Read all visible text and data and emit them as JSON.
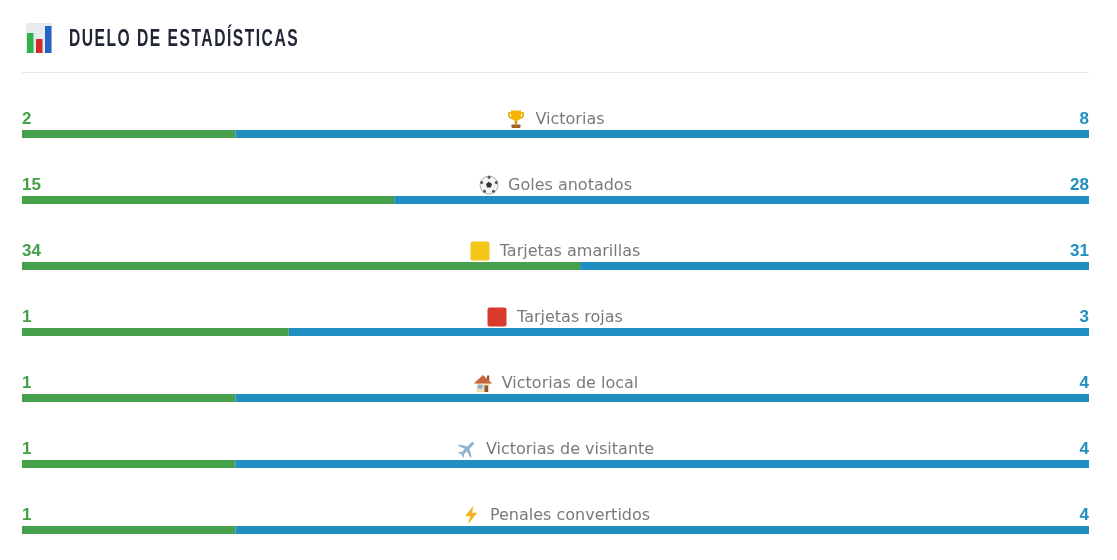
{
  "chart_data": [
    {
      "type": "bar",
      "title": "DUELO DE ESTADÍSTICAS",
      "orientation": "horizontal",
      "stacked": true,
      "tick_labels": "y",
      "data_labels": true,
      "categories": [
        "Victorias"
      ],
      "series": [
        {
          "color": "#45a049",
          "values": [
            2
          ]
        },
        {
          "color": "#1f8fc1",
          "values": [
            8
          ]
        }
      ]
    },
    {
      "type": "bar",
      "orientation": "horizontal",
      "stacked": true,
      "tick_labels": "y",
      "data_labels": true,
      "categories": [
        "Goles anotados"
      ],
      "series": [
        {
          "color": "#45a049",
          "values": [
            15
          ]
        },
        {
          "color": "#1f8fc1",
          "values": [
            28
          ]
        }
      ]
    },
    {
      "type": "bar",
      "orientation": "horizontal",
      "stacked": true,
      "tick_labels": "y",
      "data_labels": true,
      "categories": [
        "Tarjetas amarillas"
      ],
      "series": [
        {
          "color": "#45a049",
          "values": [
            34
          ]
        },
        {
          "color": "#1f8fc1",
          "values": [
            31
          ]
        }
      ]
    },
    {
      "type": "bar",
      "orientation": "horizontal",
      "stacked": true,
      "tick_labels": "y",
      "data_labels": true,
      "categories": [
        "Tarjetas rojas"
      ],
      "series": [
        {
          "color": "#45a049",
          "values": [
            1
          ]
        },
        {
          "color": "#1f8fc1",
          "values": [
            3
          ]
        }
      ]
    },
    {
      "type": "bar",
      "orientation": "horizontal",
      "stacked": true,
      "tick_labels": "y",
      "data_labels": true,
      "categories": [
        "Victorias de local"
      ],
      "series": [
        {
          "color": "#45a049",
          "values": [
            1
          ]
        },
        {
          "color": "#1f8fc1",
          "values": [
            4
          ]
        }
      ]
    },
    {
      "type": "bar",
      "orientation": "horizontal",
      "stacked": true,
      "tick_labels": "y",
      "data_labels": true,
      "categories": [
        "Victorias de visitante"
      ],
      "series": [
        {
          "color": "#45a049",
          "values": [
            1
          ]
        },
        {
          "color": "#1f8fc1",
          "values": [
            4
          ]
        }
      ]
    },
    {
      "type": "bar",
      "orientation": "horizontal",
      "stacked": true,
      "tick_labels": "y",
      "data_labels": true,
      "categories": [
        "Penales convertidos"
      ],
      "series": [
        {
          "color": "#45a049",
          "values": [
            1
          ]
        },
        {
          "color": "#1f8fc1",
          "values": [
            4
          ]
        }
      ]
    }
  ]
}
